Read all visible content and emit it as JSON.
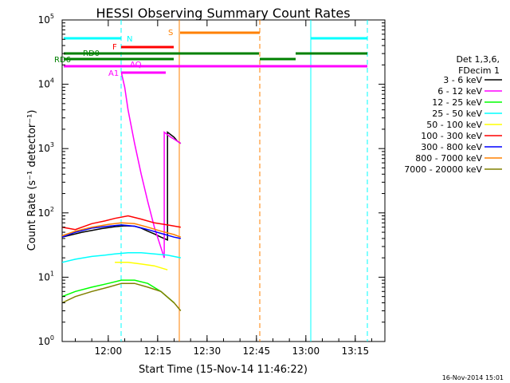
{
  "chart_data": {
    "type": "line",
    "title": "HESSI Observing Summary Count Rates",
    "xlabel": "Start Time (15-Nov-14 11:46:22)",
    "ylabel": "Count Rate (s⁻¹ detector⁻¹)",
    "yscale": "log",
    "ylim": [
      1,
      100000
    ],
    "xlim": [
      "11:46",
      "13:24"
    ],
    "x_ticks": [
      "12:00",
      "12:15",
      "12:30",
      "12:45",
      "13:00",
      "13:15"
    ],
    "y_ticks": [
      {
        "base": "10",
        "exp": "0"
      },
      {
        "base": "10",
        "exp": "1"
      },
      {
        "base": "10",
        "exp": "2"
      },
      {
        "base": "10",
        "exp": "3"
      },
      {
        "base": "10",
        "exp": "4"
      },
      {
        "base": "10",
        "exp": "5"
      }
    ],
    "legend_header": [
      "Det 1,3,6,",
      "FDecim 1"
    ],
    "legend_position": "right",
    "series": [
      {
        "name": "3 - 6 keV",
        "color": "#000000",
        "x": [
          "11:46",
          "11:52",
          "11:58",
          "12:02",
          "12:05",
          "12:08",
          "12:10",
          "12:12",
          "12:14",
          "12:16",
          "12:17",
          "12:18",
          "12:18",
          "12:20",
          "12:21",
          "12:22"
        ],
        "y": [
          42,
          50,
          57,
          61,
          63,
          62,
          58,
          52,
          47,
          42,
          40,
          38,
          1800,
          1500,
          1300,
          1200
        ]
      },
      {
        "name": "6 - 12 keV",
        "color": "#ff00ff",
        "x": [
          "12:04",
          "12:05",
          "12:06",
          "12:08",
          "12:10",
          "12:12",
          "12:14",
          "12:17",
          "12:17",
          "12:19",
          "12:20",
          "12:21",
          "12:22"
        ],
        "y": [
          15000,
          9000,
          4000,
          1200,
          400,
          150,
          60,
          20,
          1800,
          1500,
          1400,
          1300,
          1200
        ]
      },
      {
        "name": "12 - 25 keV",
        "color": "#00ff00",
        "x": [
          "11:46",
          "11:50",
          "11:55",
          "12:00",
          "12:04",
          "12:08",
          "12:12",
          "12:16",
          "12:20"
        ],
        "y": [
          5,
          6,
          7,
          8,
          9,
          9,
          8,
          6,
          4
        ]
      },
      {
        "name": "25 - 50 keV",
        "color": "#00ffff",
        "x": [
          "11:46",
          "11:50",
          "11:55",
          "11:59",
          "12:02",
          "12:06",
          "12:10",
          "12:14",
          "12:18",
          "12:22"
        ],
        "y": [
          17,
          19,
          21,
          22,
          23,
          24,
          24,
          23,
          22,
          20
        ]
      },
      {
        "name": "50 - 100 keV",
        "color": "#ffff00",
        "x": [
          "12:02",
          "12:06",
          "12:10",
          "12:14",
          "12:18"
        ],
        "y": [
          17,
          17,
          16,
          15,
          13
        ]
      },
      {
        "name": "100 - 300 keV",
        "color": "#ff0000",
        "x": [
          "11:46",
          "11:50",
          "11:55",
          "11:59",
          "12:02",
          "12:06",
          "12:10",
          "12:14",
          "12:18",
          "12:22"
        ],
        "y": [
          60,
          55,
          68,
          75,
          82,
          90,
          80,
          70,
          65,
          60
        ]
      },
      {
        "name": "300 - 800 keV",
        "color": "#0000ff",
        "x": [
          "11:46",
          "11:50",
          "11:55",
          "12:00",
          "12:04",
          "12:08",
          "12:12",
          "12:16",
          "12:20",
          "12:22"
        ],
        "y": [
          42,
          50,
          58,
          62,
          65,
          62,
          55,
          48,
          42,
          40
        ]
      },
      {
        "name": "800 - 7000 keV",
        "color": "#ff8000",
        "x": [
          "11:46",
          "11:50",
          "11:55",
          "12:00",
          "12:04",
          "12:08",
          "12:12",
          "12:16",
          "12:20",
          "12:22"
        ],
        "y": [
          44,
          52,
          60,
          66,
          70,
          68,
          60,
          52,
          46,
          42
        ]
      },
      {
        "name": "7000 - 20000 keV",
        "color": "#808000",
        "x": [
          "11:46",
          "11:50",
          "11:55",
          "12:00",
          "12:04",
          "12:08",
          "12:12",
          "12:16",
          "12:20",
          "12:22"
        ],
        "y": [
          4,
          5,
          6,
          7,
          8,
          8,
          7,
          6,
          4,
          3
        ]
      }
    ],
    "status_bars": [
      {
        "label": "N",
        "color": "#00ffff"
      },
      {
        "label": "S",
        "color": "#ff8000"
      },
      {
        "label": "F",
        "color": "#ff0000"
      },
      {
        "label": "RD0",
        "color": "#008000"
      },
      {
        "label": "RD6",
        "color": "#008000"
      },
      {
        "label": "AQ",
        "color": "#ff00ff"
      },
      {
        "label": "A1",
        "color": "#ff00ff"
      }
    ]
  },
  "footer": {
    "date_stamp": "16-Nov-2014 15:01"
  }
}
